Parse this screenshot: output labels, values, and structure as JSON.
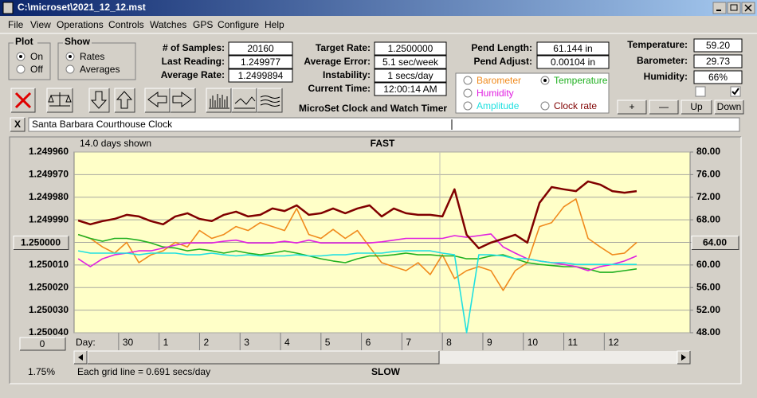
{
  "window": {
    "title": "C:\\microset\\2021_12_12.mst"
  },
  "menu": [
    "File",
    "View",
    "Operations",
    "Controls",
    "Watches",
    "GPS",
    "Configure",
    "Help"
  ],
  "plot_group": {
    "title": "Plot",
    "options": [
      "On",
      "Off"
    ],
    "selected": 0
  },
  "show_group": {
    "title": "Show",
    "options": [
      "Rates",
      "Averages"
    ],
    "selected": 0
  },
  "fields": [
    [
      {
        "label": "# of Samples:",
        "value": "20160"
      },
      {
        "label": "Last Reading:",
        "value": "1.249977"
      },
      {
        "label": "Average Rate:",
        "value": "1.2499894"
      }
    ],
    [
      {
        "label": "Target Rate:",
        "value": "1.2500000"
      },
      {
        "label": "Average Error:",
        "value": "5.1 sec/week"
      },
      {
        "label": "Instability:",
        "value": "1 secs/day"
      },
      {
        "label": "Current Time:",
        "value": "12:00:14 AM"
      }
    ],
    [
      {
        "label": "Pend Length:",
        "value": "61.144 in"
      },
      {
        "label": "Pend Adjust:",
        "value": "0.00104 in"
      }
    ],
    [
      {
        "label": "Temperature:",
        "value": "59.20"
      },
      {
        "label": "Barometer:",
        "value": "29.73"
      },
      {
        "label": "Humidity:",
        "value": "66%"
      }
    ]
  ],
  "caption": "MicroSet Clock and Watch Timer",
  "buttons": [
    "+",
    "—",
    "Up",
    "Down"
  ],
  "close_button": "X",
  "clock_name": "Santa Barbara Courthouse Clock",
  "chart_data": {
    "type": "line",
    "top_label": "FAST",
    "bottom_label": "SLOW",
    "days_shown": "14.0 days shown",
    "grid_note": "Each grid line = 0.691 secs/day",
    "x_label": "Day:",
    "percent": "1.75%",
    "x_button": "0",
    "xlim": [
      28.9,
      44.12
    ],
    "xticks": [
      30,
      {
        "value": 31,
        "label": "1"
      },
      {
        "value": 32,
        "label": "2"
      },
      {
        "value": 33,
        "label": "3"
      },
      {
        "value": 34,
        "label": "4"
      },
      {
        "value": 35,
        "label": "5"
      },
      {
        "value": 36,
        "label": "6"
      },
      {
        "value": 37,
        "label": "7"
      },
      {
        "value": 38,
        "label": "8"
      },
      {
        "value": 39,
        "label": "9"
      },
      {
        "value": 40,
        "label": "10"
      },
      {
        "value": 41,
        "label": "11"
      },
      {
        "value": 42,
        "label": "12"
      }
    ],
    "ylim": [
      1.25004,
      1.24996
    ],
    "yticks": [
      {
        "value": 1.24996,
        "label": "1.249960"
      },
      {
        "value": 1.24997,
        "label": "1.249970"
      },
      {
        "value": 1.24998,
        "label": "1.249980"
      },
      {
        "value": 1.24999,
        "label": "1.249990"
      },
      {
        "value": 1.25,
        "label": "1.250000"
      },
      {
        "value": 1.25001,
        "label": "1.250010"
      },
      {
        "value": 1.25002,
        "label": "1.250020"
      },
      {
        "value": 1.25003,
        "label": "1.250030"
      },
      {
        "value": 1.25004,
        "label": "1.250040"
      }
    ],
    "y2lim": [
      48,
      80
    ],
    "y2ticks": [
      {
        "value": 80,
        "label": "80.00"
      },
      {
        "value": 76,
        "label": "76.00"
      },
      {
        "value": 72,
        "label": "72.00"
      },
      {
        "value": 68,
        "label": "68.00"
      },
      {
        "value": 64,
        "label": "64.00"
      },
      {
        "value": 60,
        "label": "60.00"
      },
      {
        "value": 56,
        "label": "56.00"
      },
      {
        "value": 52,
        "label": "52.00"
      },
      {
        "value": 48,
        "label": "48.00"
      }
    ],
    "grid": true,
    "reference_y": {
      "value": 1.25,
      "label": "1.250000"
    },
    "reference_y2": {
      "value": 64,
      "label": "64.00"
    },
    "selected_series": 1,
    "x": [
      29,
      29.3,
      29.6,
      29.9,
      30.2,
      30.5,
      30.8,
      31.1,
      31.4,
      31.7,
      32,
      32.3,
      32.6,
      32.9,
      33.2,
      33.5,
      33.8,
      34.1,
      34.4,
      34.7,
      35,
      35.3,
      35.6,
      35.9,
      36.2,
      36.5,
      36.8,
      37.1,
      37.4,
      37.7,
      38,
      38.3,
      38.6,
      38.9,
      39.2,
      39.5,
      39.8,
      40.1,
      40.4,
      40.7,
      41,
      41.3,
      41.6,
      41.9,
      42.2,
      42.5,
      42.8
    ],
    "series": [
      {
        "name": "Barometer",
        "color": "#f08a1c",
        "axis": "y2",
        "values": [
          65.4,
          64.7,
          63.2,
          62.1,
          64.0,
          60.4,
          61.8,
          62.5,
          64.0,
          63.2,
          66.1,
          64.7,
          65.4,
          66.8,
          66.1,
          67.5,
          66.8,
          66.1,
          70.0,
          65.4,
          64.7,
          66.3,
          64.7,
          66.1,
          63.2,
          60.4,
          59.7,
          59.0,
          60.4,
          58.3,
          61.8,
          57.6,
          59.0,
          59.7,
          59.0,
          55.5,
          59.0,
          60.4,
          66.8,
          67.5,
          70.3,
          71.7,
          64.7,
          63.2,
          61.8,
          62.1,
          64.0
        ]
      },
      {
        "name": "Temperature",
        "color": "#20b020",
        "axis": "y2",
        "values": [
          65.4,
          64.7,
          64.2,
          64.7,
          64.7,
          64.4,
          63.9,
          63.2,
          63.0,
          62.5,
          62.8,
          62.5,
          62.1,
          62.5,
          62.1,
          61.8,
          62.1,
          62.5,
          62.1,
          61.6,
          61.1,
          60.7,
          60.4,
          61.1,
          61.6,
          61.6,
          61.8,
          62.1,
          61.8,
          61.8,
          61.6,
          61.6,
          61.1,
          61.1,
          61.6,
          61.8,
          61.1,
          60.4,
          60.1,
          59.9,
          59.7,
          59.7,
          59.3,
          58.7,
          58.7,
          59.0,
          59.3
        ]
      },
      {
        "name": "Humidity",
        "color": "#e020e0",
        "axis": "y2",
        "values": [
          61.1,
          59.7,
          61.1,
          61.8,
          62.1,
          62.5,
          62.5,
          63.0,
          63.5,
          63.9,
          63.9,
          63.9,
          64.2,
          64.4,
          63.9,
          63.9,
          63.9,
          64.2,
          63.9,
          64.4,
          63.9,
          63.9,
          63.9,
          63.9,
          63.9,
          64.1,
          64.4,
          64.7,
          64.7,
          64.7,
          64.7,
          65.2,
          64.9,
          65.2,
          65.5,
          63.2,
          62.1,
          61.1,
          60.7,
          60.4,
          60.1,
          59.7,
          59.0,
          59.7,
          60.1,
          60.7,
          61.6
        ]
      },
      {
        "name": "Amplitude",
        "color": "#20e0e0",
        "axis": "y2",
        "values": [
          62.5,
          62.1,
          62.1,
          62.1,
          62.1,
          61.8,
          62.1,
          62.1,
          62.1,
          61.8,
          61.8,
          62.1,
          61.8,
          61.6,
          61.8,
          61.6,
          61.6,
          61.6,
          61.8,
          61.6,
          61.6,
          61.8,
          61.8,
          62.1,
          62.1,
          62.1,
          62.4,
          62.5,
          62.5,
          62.5,
          62.1,
          61.8,
          48,
          61.8,
          61.8,
          61.6,
          61.1,
          61.1,
          60.7,
          60.4,
          60.4,
          60.1,
          60.1,
          60.1,
          60.1,
          60.1,
          60.1
        ]
      },
      {
        "name": "Clock rate",
        "color": "#800000",
        "axis": "y",
        "values": [
          1.2499903,
          1.249992,
          1.2499906,
          1.2499896,
          1.2499878,
          1.2499885,
          1.2499906,
          1.249992,
          1.2499885,
          1.2499871,
          1.2499896,
          1.2499906,
          1.2499878,
          1.2499864,
          1.2499885,
          1.2499878,
          1.249985,
          1.2499861,
          1.2499836,
          1.2499878,
          1.2499871,
          1.249985,
          1.2499871,
          1.249985,
          1.2499836,
          1.2499885,
          1.249985,
          1.2499871,
          1.2499878,
          1.2499878,
          1.2499885,
          1.2499765,
          1.2499966,
          1.2500026,
          1.2500001,
          1.2499984,
          1.2499966,
          1.2500001,
          1.2499825,
          1.2499755,
          1.2499765,
          1.2499773,
          1.249973,
          1.2499744,
          1.2499773,
          1.249978,
          1.2499773
        ]
      }
    ]
  }
}
